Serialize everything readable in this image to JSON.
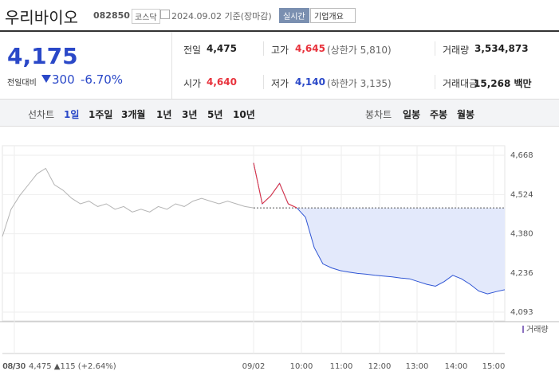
{
  "header": {
    "name": "우리바이오",
    "code": "082850",
    "market": "코스닥",
    "date": "2024.09.02 기준(장마감)",
    "realtime_button": "실시간",
    "company_button": "기업개요"
  },
  "quote": {
    "price": "4,175",
    "change_label": "전일대비",
    "change": "300",
    "change_pct": "-6.70%"
  },
  "stats": [
    {
      "label": "전일",
      "value": "4,475"
    },
    {
      "label": "고가",
      "value": "4,645",
      "note": "(상한가 5,810)"
    },
    {
      "label": "거래량",
      "value": "3,534,873"
    },
    {
      "label": "시가",
      "value": "4,640"
    },
    {
      "label": "저가",
      "value": "4,140",
      "note": "(하한가 3,135)"
    },
    {
      "label": "거래대금",
      "value": "15,268 백만"
    }
  ],
  "tabs": {
    "line_label": "선차트",
    "line_periods": [
      "1일",
      "1주일",
      "3개월",
      "1년",
      "3년",
      "5년",
      "10년"
    ],
    "candle_label": "봉차트",
    "candle_periods": [
      "일봉",
      "주봉",
      "월봉"
    ]
  },
  "chart_data": {
    "type": "line",
    "ylim": [
      4061,
      4703
    ],
    "yticks": [
      {
        "value": 4668,
        "label": "4,668"
      },
      {
        "value": 4524,
        "label": "4,524"
      },
      {
        "value": 4380,
        "label": "4,380"
      },
      {
        "value": 4236,
        "label": "4,236"
      },
      {
        "value": 4093,
        "label": "4,093"
      }
    ],
    "x_labels": [
      "08/30",
      "09/02",
      "10:00",
      "11:00",
      "12:00",
      "13:00",
      "14:00",
      "15:00"
    ],
    "prev_close": 4475,
    "series": [
      {
        "color": "#b4b4b4",
        "values": [
          4370,
          4470,
          4520,
          4560,
          4600,
          4620,
          4560,
          4540,
          4510,
          4490,
          4500,
          4480,
          4490,
          4470,
          4480,
          4460,
          4470,
          4460,
          4480,
          4470,
          4490,
          4480,
          4500,
          4510,
          4500,
          4490,
          4500,
          4490,
          4480,
          4475
        ]
      },
      {
        "color": "#2f55d4",
        "up_color": "#e8323c",
        "values": [
          4640,
          4490,
          4520,
          4565,
          4490,
          4475,
          4440,
          4330,
          4270,
          4255,
          4245,
          4240,
          4235,
          4232,
          4228,
          4225,
          4222,
          4218,
          4215,
          4205,
          4195,
          4188,
          4205,
          4228,
          4215,
          4195,
          4170,
          4160,
          4168,
          4175
        ]
      }
    ],
    "volume_label": "거래량",
    "footer_date": "08/30",
    "footer_change": "4,475 ▲115 (+2.64%)"
  }
}
